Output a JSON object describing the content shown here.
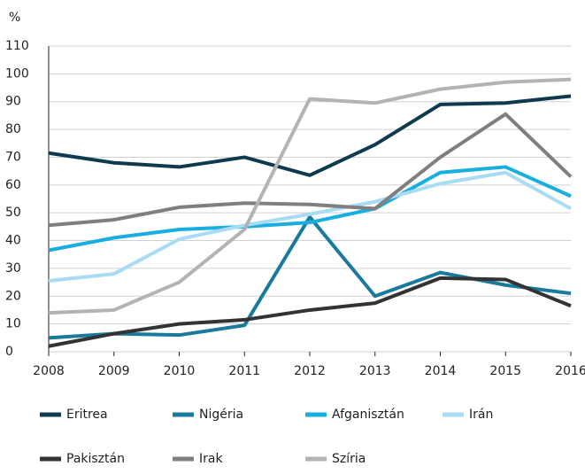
{
  "chart_data": {
    "type": "line",
    "y_unit_label": "%",
    "x": [
      2008,
      2009,
      2010,
      2011,
      2012,
      2013,
      2014,
      2015,
      2016
    ],
    "xlim": [
      2008,
      2016
    ],
    "xticks": [
      2008,
      2009,
      2010,
      2011,
      2012,
      2013,
      2014,
      2015,
      2016
    ],
    "ylim": [
      0,
      110
    ],
    "yticks": [
      0,
      10,
      20,
      30,
      40,
      50,
      60,
      70,
      80,
      90,
      100,
      110
    ],
    "grid": true,
    "series": [
      {
        "name": "Eritrea",
        "color": "#0d3a4f",
        "values": [
          71.5,
          68,
          66.5,
          70,
          63.5,
          74.5,
          89,
          89.5,
          92
        ]
      },
      {
        "name": "Nigéria",
        "color": "#1a7a9c",
        "values": [
          5,
          6.5,
          6,
          9.5,
          48.5,
          20,
          28.5,
          24,
          21
        ]
      },
      {
        "name": "Afganisztán",
        "color": "#18aee0",
        "values": [
          36.5,
          41,
          44,
          45,
          46.5,
          51.5,
          64.5,
          66.5,
          56
        ]
      },
      {
        "name": "Irán",
        "color": "#a8dbf4",
        "values": [
          25.5,
          28,
          40.5,
          45.5,
          49.5,
          54,
          60.5,
          64.5,
          51.5
        ]
      },
      {
        "name": "Pakisztán",
        "color": "#333333",
        "values": [
          2,
          6.5,
          10,
          11.5,
          15,
          17.5,
          26.5,
          26,
          16.5
        ]
      },
      {
        "name": "Irak",
        "color": "#7f7f7f",
        "values": [
          45.5,
          47.5,
          52,
          53.5,
          53,
          51.5,
          70,
          85.5,
          63
        ]
      },
      {
        "name": "Szíria",
        "color": "#b3b3b3",
        "values": [
          14,
          15,
          25,
          44,
          91,
          89.5,
          94.5,
          97,
          98
        ]
      }
    ]
  }
}
